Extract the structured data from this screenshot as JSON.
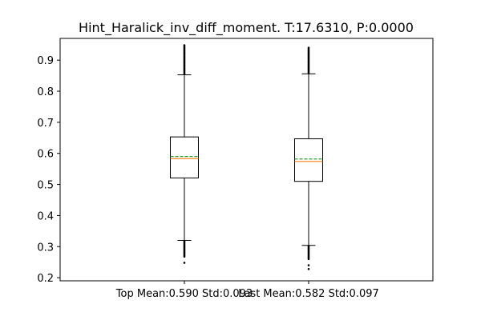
{
  "chart_data": {
    "type": "box",
    "title": "Hint_Haralick_inv_diff_moment. T:17.6310, P:0.0000",
    "xlabel": "",
    "ylabel": "",
    "ylim": [
      0.19,
      0.97
    ],
    "yticks": [
      0.2,
      0.3,
      0.4,
      0.5,
      0.6,
      0.7,
      0.8,
      0.9
    ],
    "grid": false,
    "categories": [
      "Top Mean:0.590 Std:0.093",
      "Last Mean:0.582 Std:0.097"
    ],
    "boxes": [
      {
        "label": "Top Mean:0.590 Std:0.093",
        "whisker_low": 0.32,
        "q1": 0.521,
        "median": 0.583,
        "mean": 0.59,
        "q3": 0.653,
        "whisker_high": 0.853,
        "outliers_low_range": [
          0.268,
          0.318
        ],
        "outliers_low_isolated": [
          0.248
        ],
        "outliers_high_range": [
          0.856,
          0.948
        ]
      },
      {
        "label": "Last Mean:0.582 Std:0.097",
        "whisker_low": 0.304,
        "q1": 0.51,
        "median": 0.574,
        "mean": 0.582,
        "q3": 0.647,
        "whisker_high": 0.856,
        "outliers_low_range": [
          0.26,
          0.302
        ],
        "outliers_low_isolated": [
          0.24,
          0.228
        ],
        "outliers_high_range": [
          0.858,
          0.94
        ]
      }
    ],
    "colors": {
      "box": "#000000",
      "median": "#ff7f0e",
      "mean": "#2ca02c"
    }
  }
}
